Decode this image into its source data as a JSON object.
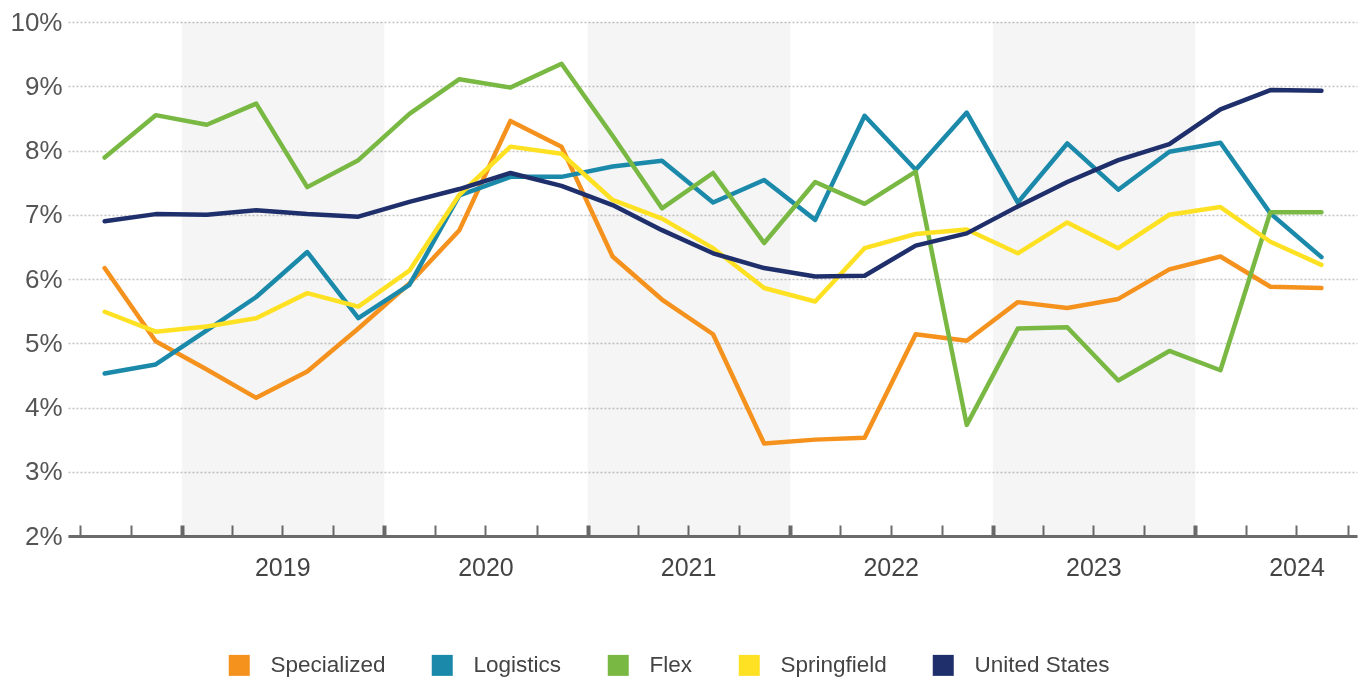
{
  "chart_data": {
    "type": "line",
    "x": [
      "2018-08-15",
      "2018-11-15",
      "2019-02-15",
      "2019-05-15",
      "2019-08-15",
      "2019-11-15",
      "2020-02-15",
      "2020-05-15",
      "2020-08-15",
      "2020-11-15",
      "2021-02-15",
      "2021-05-15",
      "2021-08-15",
      "2021-11-15",
      "2022-02-15",
      "2022-05-15",
      "2022-08-15",
      "2022-11-15",
      "2023-02-15",
      "2023-05-15",
      "2023-08-15",
      "2023-11-15",
      "2024-02-15",
      "2024-05-15",
      "2024-08-15"
    ],
    "series": [
      {
        "name": "Specialized",
        "color": "#f5921e",
        "values": [
          6.17,
          5.03,
          4.59,
          4.15,
          4.56,
          5.23,
          5.93,
          6.76,
          8.46,
          8.06,
          6.35,
          5.68,
          5.14,
          3.44,
          3.5,
          3.53,
          5.14,
          5.04,
          5.64,
          5.55,
          5.69,
          6.15,
          6.35,
          5.88,
          5.86
        ]
      },
      {
        "name": "Logistics",
        "color": "#1b8aaa",
        "values": [
          4.53,
          4.67,
          5.2,
          5.72,
          6.42,
          5.39,
          5.91,
          7.3,
          7.59,
          7.59,
          7.75,
          7.84,
          7.19,
          7.54,
          6.92,
          8.54,
          7.7,
          8.59,
          7.19,
          8.11,
          7.39,
          7.98,
          8.12,
          7.02,
          6.34
        ]
      },
      {
        "name": "Flex",
        "color": "#78b843",
        "values": [
          7.89,
          8.55,
          8.4,
          8.73,
          7.43,
          7.85,
          8.57,
          9.11,
          8.98,
          9.35,
          8.23,
          7.1,
          7.65,
          6.56,
          7.51,
          7.17,
          7.67,
          3.73,
          5.23,
          5.25,
          4.42,
          4.88,
          4.58,
          7.04,
          7.04
        ]
      },
      {
        "name": "Springfield",
        "color": "#fee122",
        "values": [
          5.49,
          5.18,
          5.26,
          5.39,
          5.78,
          5.57,
          6.13,
          7.31,
          8.06,
          7.95,
          7.23,
          6.94,
          6.48,
          5.86,
          5.65,
          6.48,
          6.7,
          6.77,
          6.4,
          6.88,
          6.48,
          7.0,
          7.12,
          6.58,
          6.22
        ]
      },
      {
        "name": "United States",
        "color": "#1e2f6b",
        "values": [
          6.9,
          7.01,
          7.0,
          7.07,
          7.01,
          6.97,
          7.2,
          7.4,
          7.65,
          7.45,
          7.15,
          6.76,
          6.4,
          6.17,
          6.04,
          6.05,
          6.52,
          6.71,
          7.13,
          7.51,
          7.85,
          8.1,
          8.64,
          8.94,
          8.93
        ]
      }
    ],
    "xlim": [
      "2018-06-10",
      "2024-10-18"
    ],
    "xticks": [
      {
        "value": "2018-07-01",
        "label": null
      },
      {
        "value": "2018-10-01",
        "label": null
      },
      {
        "value": "2019-01-01",
        "label": null
      },
      {
        "value": "2019-04-01",
        "label": null
      },
      {
        "value": "2019-07-01",
        "label": "2019"
      },
      {
        "value": "2019-10-01",
        "label": null
      },
      {
        "value": "2020-01-01",
        "label": null
      },
      {
        "value": "2020-04-01",
        "label": null
      },
      {
        "value": "2020-07-01",
        "label": "2020"
      },
      {
        "value": "2020-10-01",
        "label": null
      },
      {
        "value": "2021-01-01",
        "label": null
      },
      {
        "value": "2021-04-01",
        "label": null
      },
      {
        "value": "2021-07-01",
        "label": "2021"
      },
      {
        "value": "2021-10-01",
        "label": null
      },
      {
        "value": "2022-01-01",
        "label": null
      },
      {
        "value": "2022-04-01",
        "label": null
      },
      {
        "value": "2022-07-01",
        "label": "2022"
      },
      {
        "value": "2022-10-01",
        "label": null
      },
      {
        "value": "2023-01-01",
        "label": null
      },
      {
        "value": "2023-04-01",
        "label": null
      },
      {
        "value": "2023-07-01",
        "label": "2023"
      },
      {
        "value": "2023-10-01",
        "label": null
      },
      {
        "value": "2024-01-01",
        "label": null
      },
      {
        "value": "2024-04-01",
        "label": null
      },
      {
        "value": "2024-07-01",
        "label": "2024"
      },
      {
        "value": "2024-10-01",
        "label": null
      }
    ],
    "ylim": [
      2,
      10
    ],
    "yticks": [
      {
        "value": 2,
        "label": "2%"
      },
      {
        "value": 3,
        "label": "3%"
      },
      {
        "value": 4,
        "label": "4%"
      },
      {
        "value": 5,
        "label": "5%"
      },
      {
        "value": 6,
        "label": "6%"
      },
      {
        "value": 7,
        "label": "7%"
      },
      {
        "value": 8,
        "label": "8%"
      },
      {
        "value": 9,
        "label": "9%"
      },
      {
        "value": 10,
        "label": "10%"
      }
    ],
    "bands": [
      {
        "axis": "x",
        "from": "2019-01-01",
        "to": "2020-01-01",
        "color": "#f5f5f5"
      },
      {
        "axis": "x",
        "from": "2021-01-01",
        "to": "2022-01-01",
        "color": "#f5f5f5"
      },
      {
        "axis": "x",
        "from": "2023-01-01",
        "to": "2024-01-01",
        "color": "#f5f5f5"
      }
    ],
    "grid": "y",
    "legend": "bottom",
    "line_style": "solid"
  }
}
